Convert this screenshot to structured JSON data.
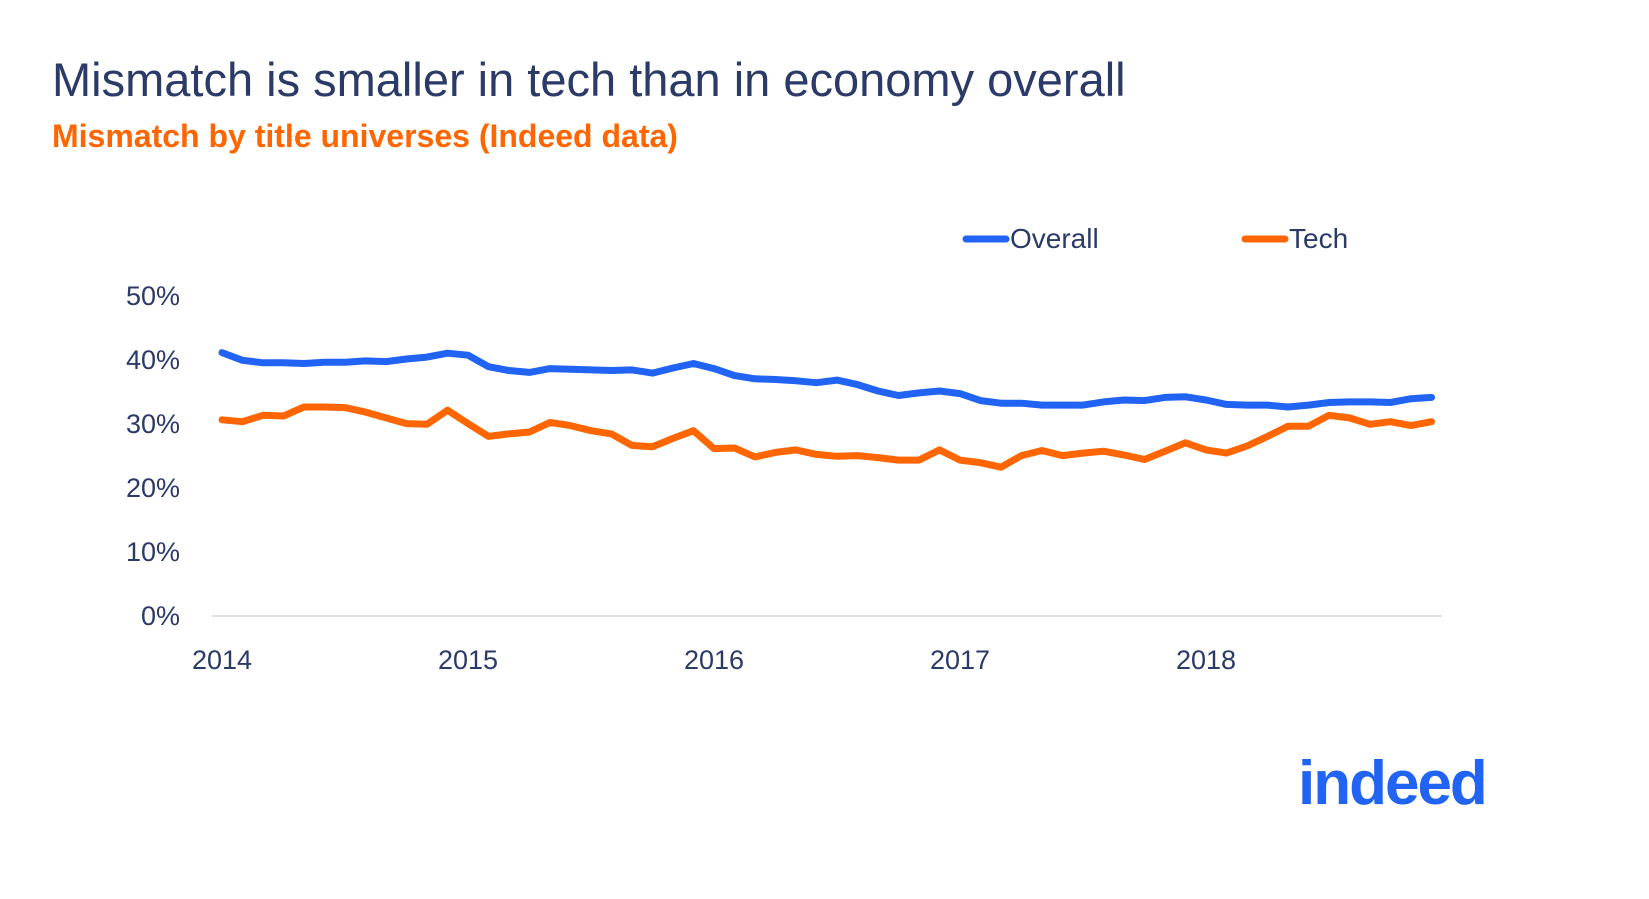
{
  "chart_data": {
    "type": "line",
    "title": "Mismatch is smaller in tech than in economy overall",
    "subtitle": "Mismatch by title universes (Indeed data)",
    "xlabel": "",
    "ylabel": "",
    "x_ticks": [
      "2014",
      "2015",
      "2016",
      "2017",
      "2018"
    ],
    "y_ticks": [
      "0%",
      "10%",
      "20%",
      "30%",
      "40%",
      "50%"
    ],
    "ylim": [
      0,
      50
    ],
    "x_start": "2014-01",
    "x_end": "2018-12",
    "frequency": "monthly",
    "grid": false,
    "legend": "top-right",
    "series": [
      {
        "name": "Overall",
        "color": "#2164f3",
        "values": [
          41.0,
          39.8,
          39.4,
          39.4,
          39.3,
          39.5,
          39.5,
          39.7,
          39.6,
          40.0,
          40.3,
          40.9,
          40.6,
          38.8,
          38.2,
          37.9,
          38.5,
          38.4,
          38.3,
          38.2,
          38.3,
          37.8,
          38.6,
          39.3,
          38.5,
          37.4,
          36.9,
          36.8,
          36.6,
          36.3,
          36.7,
          36.0,
          35.0,
          34.3,
          34.7,
          35.0,
          34.6,
          33.5,
          33.1,
          33.1,
          32.8,
          32.8,
          32.8,
          33.3,
          33.6,
          33.5,
          34.0,
          34.1,
          33.6,
          32.9,
          32.8,
          32.8,
          32.5,
          32.8,
          33.2,
          33.3,
          33.3,
          33.2,
          33.8,
          34.0
        ]
      },
      {
        "name": "Tech",
        "color": "#ff6600",
        "values": [
          30.5,
          30.2,
          31.2,
          31.1,
          32.5,
          32.5,
          32.4,
          31.7,
          30.8,
          29.9,
          29.8,
          32.0,
          29.9,
          27.9,
          28.3,
          28.6,
          30.1,
          29.6,
          28.8,
          28.3,
          26.5,
          26.3,
          27.6,
          28.8,
          26.0,
          26.1,
          24.7,
          25.4,
          25.8,
          25.1,
          24.8,
          24.9,
          24.6,
          24.2,
          24.2,
          25.8,
          24.2,
          23.8,
          23.1,
          24.9,
          25.7,
          24.9,
          25.3,
          25.6,
          25.0,
          24.3,
          25.6,
          26.9,
          25.8,
          25.3,
          26.4,
          27.9,
          29.5,
          29.5,
          31.2,
          30.8,
          29.8,
          30.2,
          29.6,
          30.2
        ]
      }
    ]
  },
  "logo": {
    "text": "indeed",
    "color": "#2164f3"
  }
}
